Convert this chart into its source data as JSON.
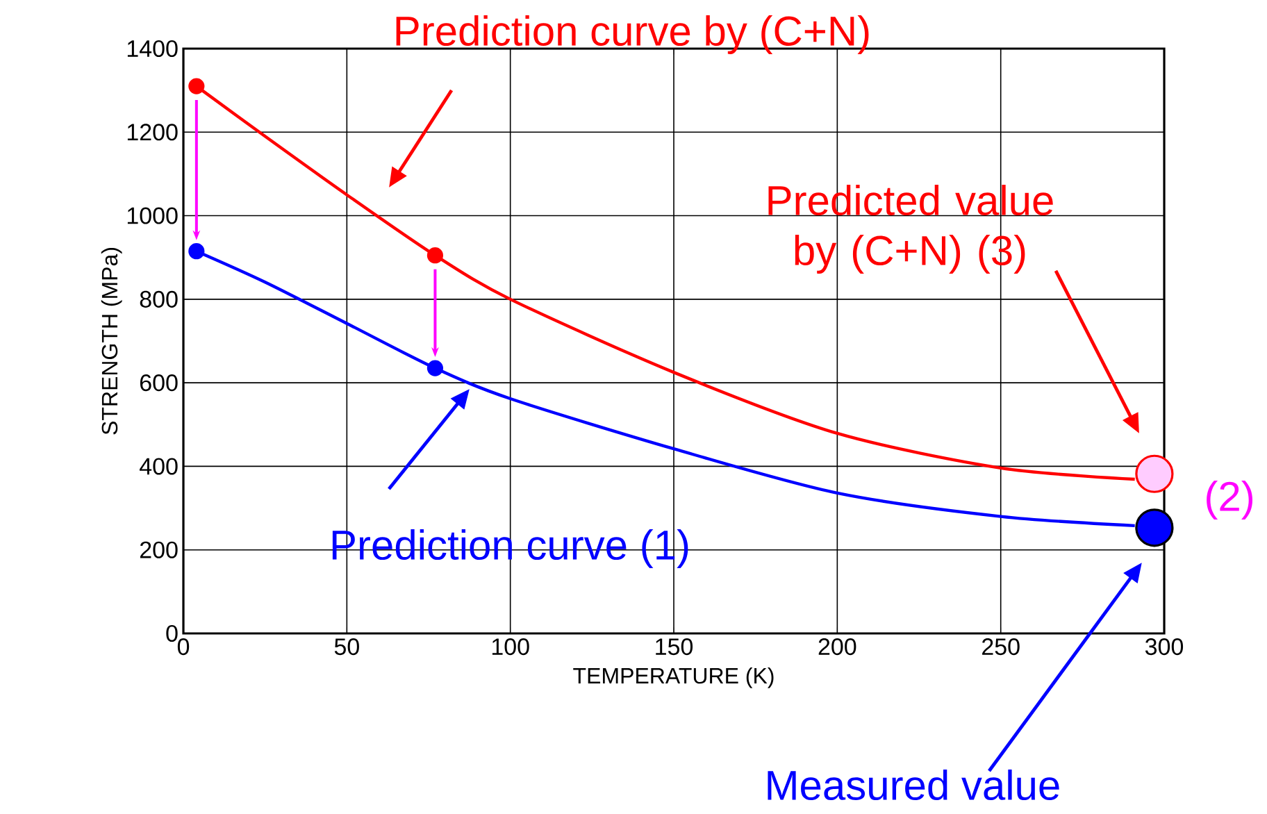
{
  "chart_data": {
    "type": "line",
    "xlabel": "TEMPERATURE (K)",
    "ylabel": "STRENGTH (MPa)",
    "xlim": [
      0,
      300
    ],
    "xticks": [
      0,
      50,
      100,
      150,
      200,
      250,
      300
    ],
    "ylim": [
      0,
      1400
    ],
    "yticks": [
      0,
      200,
      400,
      600,
      800,
      1000,
      1200,
      1400
    ],
    "grid": true,
    "series": [
      {
        "color": "#ff0000",
        "x": [
          4,
          25,
          50,
          77,
          100,
          150,
          200,
          250,
          291
        ],
        "values": [
          1310,
          1190,
          1050,
          905,
          800,
          625,
          479,
          396,
          369
        ],
        "marker": "none"
      },
      {
        "type": "scatter",
        "color": "#ff0000",
        "x": [
          4,
          77
        ],
        "values": [
          1310,
          905
        ],
        "marker": "circle"
      },
      {
        "color": "#0000ff",
        "x": [
          4,
          25,
          50,
          77,
          100,
          150,
          200,
          250,
          291
        ],
        "values": [
          915,
          841,
          742,
          635,
          562,
          442,
          336,
          280,
          258
        ],
        "marker": "none"
      },
      {
        "type": "scatter",
        "color": "#0000ff",
        "x": [
          4,
          77
        ],
        "values": [
          915,
          635
        ],
        "marker": "circle"
      },
      {
        "type": "scatter",
        "color": "#ffccff",
        "x": [
          297
        ],
        "values": [
          382
        ],
        "marker": "circle"
      },
      {
        "type": "scatter",
        "color": "#0000ff",
        "x": [
          297
        ],
        "values": [
          253
        ],
        "marker": "circle"
      }
    ],
    "annotations": [
      "Prediction curve by (C+N)",
      "Predicted value by (C+N) (3)",
      "(2)",
      "Prediction curve (1)",
      "Measured  value"
    ]
  }
}
